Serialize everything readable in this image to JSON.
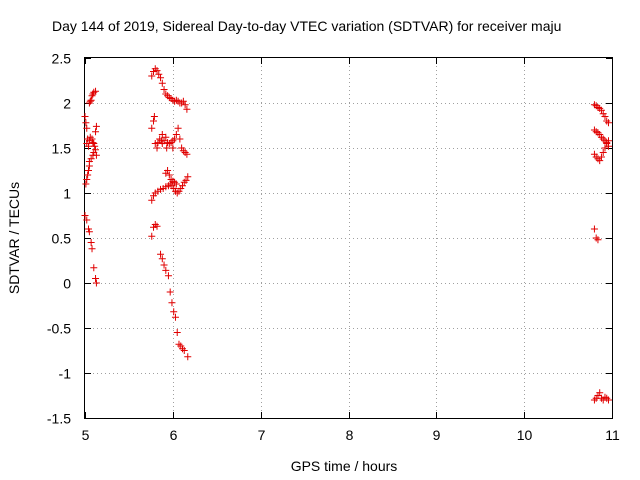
{
  "chart_data": {
    "type": "scatter",
    "title": "Day 144 of 2019, Sidereal Day-to-day VTEC variation (SDTVAR) for receiver maju",
    "xlabel": "GPS time / hours",
    "ylabel": "SDTVAR / TECUs",
    "xlim": [
      5,
      11
    ],
    "ylim": [
      -1.5,
      2.5
    ],
    "xticks": [
      5,
      6,
      7,
      8,
      9,
      10,
      11
    ],
    "xtick_labels": [
      "5",
      "6",
      "7",
      "8",
      "9",
      "10",
      "11"
    ],
    "yticks": [
      -1.5,
      -1,
      -0.5,
      0,
      0.5,
      1,
      1.5,
      2,
      2.5
    ],
    "ytick_labels": [
      "-1.5",
      "-1",
      "-0.5",
      "0",
      "0.5",
      "1",
      "1.5",
      "2",
      "2.5"
    ],
    "grid": true,
    "marker": "+",
    "color": "#e00000",
    "series": [
      {
        "name": "SDTVAR",
        "points": [
          [
            5.0,
            1.85
          ],
          [
            5.01,
            1.78
          ],
          [
            5.02,
            1.72
          ],
          [
            5.03,
            1.6
          ],
          [
            5.02,
            1.55
          ],
          [
            5.04,
            1.52
          ],
          [
            5.05,
            2.0
          ],
          [
            5.06,
            2.02
          ],
          [
            5.07,
            2.03
          ],
          [
            5.08,
            2.08
          ],
          [
            5.09,
            2.1
          ],
          [
            5.1,
            2.12
          ],
          [
            5.12,
            2.13
          ],
          [
            5.05,
            1.58
          ],
          [
            5.06,
            1.62
          ],
          [
            5.08,
            1.6
          ],
          [
            5.09,
            1.56
          ],
          [
            5.1,
            1.55
          ],
          [
            5.11,
            1.52
          ],
          [
            5.12,
            1.48
          ],
          [
            5.13,
            1.42
          ],
          [
            5.12,
            1.68
          ],
          [
            5.13,
            1.74
          ],
          [
            5.05,
            1.35
          ],
          [
            5.07,
            1.38
          ],
          [
            5.09,
            1.42
          ],
          [
            5.1,
            1.45
          ],
          [
            5.01,
            1.1
          ],
          [
            5.02,
            1.15
          ],
          [
            5.03,
            1.2
          ],
          [
            5.04,
            1.25
          ],
          [
            5.05,
            1.3
          ],
          [
            5.0,
            0.75
          ],
          [
            5.02,
            0.7
          ],
          [
            5.04,
            0.6
          ],
          [
            5.05,
            0.57
          ],
          [
            5.07,
            0.45
          ],
          [
            5.08,
            0.38
          ],
          [
            5.1,
            0.17
          ],
          [
            5.12,
            0.05
          ],
          [
            5.13,
            0.0
          ],
          [
            5.76,
            0.52
          ],
          [
            5.78,
            0.62
          ],
          [
            5.8,
            0.65
          ],
          [
            5.82,
            0.63
          ],
          [
            5.86,
            0.32
          ],
          [
            5.88,
            0.27
          ],
          [
            5.9,
            0.2
          ],
          [
            5.92,
            0.14
          ],
          [
            5.95,
            0.08
          ],
          [
            5.97,
            -0.1
          ],
          [
            5.99,
            -0.22
          ],
          [
            6.01,
            -0.32
          ],
          [
            6.03,
            -0.38
          ],
          [
            6.05,
            -0.55
          ],
          [
            6.07,
            -0.68
          ],
          [
            6.09,
            -0.7
          ],
          [
            6.11,
            -0.73
          ],
          [
            6.13,
            -0.75
          ],
          [
            6.17,
            -0.82
          ],
          [
            5.76,
            0.92
          ],
          [
            5.78,
            0.97
          ],
          [
            5.8,
            1.0
          ],
          [
            5.83,
            1.02
          ],
          [
            5.86,
            1.04
          ],
          [
            5.89,
            1.05
          ],
          [
            5.92,
            1.07
          ],
          [
            5.95,
            1.08
          ],
          [
            5.97,
            1.1
          ],
          [
            5.99,
            1.08
          ],
          [
            6.01,
            1.05
          ],
          [
            6.03,
            1.02
          ],
          [
            6.05,
            1.0
          ],
          [
            6.07,
            1.02
          ],
          [
            6.09,
            1.05
          ],
          [
            6.11,
            1.08
          ],
          [
            6.13,
            1.12
          ],
          [
            6.15,
            1.14
          ],
          [
            6.17,
            1.18
          ],
          [
            5.92,
            1.22
          ],
          [
            5.94,
            1.25
          ],
          [
            5.96,
            1.2
          ],
          [
            5.98,
            1.15
          ],
          [
            6.0,
            1.13
          ],
          [
            6.02,
            1.12
          ],
          [
            6.04,
            1.1
          ],
          [
            5.76,
            1.72
          ],
          [
            5.78,
            1.8
          ],
          [
            5.79,
            1.85
          ],
          [
            5.8,
            1.55
          ],
          [
            5.82,
            1.5
          ],
          [
            5.83,
            1.56
          ],
          [
            5.85,
            1.6
          ],
          [
            5.87,
            1.58
          ],
          [
            5.88,
            1.55
          ],
          [
            5.9,
            1.58
          ],
          [
            5.92,
            1.62
          ],
          [
            5.94,
            1.56
          ],
          [
            5.96,
            1.55
          ],
          [
            5.98,
            1.56
          ],
          [
            6.0,
            1.58
          ],
          [
            6.02,
            1.6
          ],
          [
            6.04,
            1.65
          ],
          [
            6.06,
            1.72
          ],
          [
            6.08,
            1.6
          ],
          [
            6.1,
            1.5
          ],
          [
            6.12,
            1.47
          ],
          [
            6.14,
            1.45
          ],
          [
            6.16,
            1.43
          ],
          [
            5.88,
            1.65
          ],
          [
            5.93,
            1.5
          ],
          [
            6.0,
            1.5
          ],
          [
            5.76,
            2.3
          ],
          [
            5.78,
            2.35
          ],
          [
            5.8,
            2.38
          ],
          [
            5.82,
            2.36
          ],
          [
            5.84,
            2.32
          ],
          [
            5.86,
            2.28
          ],
          [
            5.88,
            2.22
          ],
          [
            5.9,
            2.15
          ],
          [
            5.92,
            2.1
          ],
          [
            5.94,
            2.08
          ],
          [
            5.96,
            2.06
          ],
          [
            5.98,
            2.05
          ],
          [
            6.0,
            2.03
          ],
          [
            6.02,
            2.02
          ],
          [
            6.04,
            2.03
          ],
          [
            6.06,
            2.02
          ],
          [
            6.08,
            2.0
          ],
          [
            6.1,
            2.0
          ],
          [
            6.12,
            2.02
          ],
          [
            6.14,
            1.98
          ],
          [
            6.16,
            1.93
          ],
          [
            10.8,
            1.98
          ],
          [
            10.82,
            1.97
          ],
          [
            10.84,
            1.95
          ],
          [
            10.86,
            1.94
          ],
          [
            10.88,
            1.92
          ],
          [
            10.9,
            1.88
          ],
          [
            10.92,
            1.85
          ],
          [
            10.94,
            1.8
          ],
          [
            10.96,
            1.78
          ],
          [
            10.8,
            1.7
          ],
          [
            10.82,
            1.68
          ],
          [
            10.84,
            1.67
          ],
          [
            10.86,
            1.65
          ],
          [
            10.88,
            1.62
          ],
          [
            10.9,
            1.6
          ],
          [
            10.92,
            1.58
          ],
          [
            10.94,
            1.56
          ],
          [
            10.96,
            1.52
          ],
          [
            10.8,
            1.43
          ],
          [
            10.82,
            1.4
          ],
          [
            10.84,
            1.38
          ],
          [
            10.86,
            1.36
          ],
          [
            10.88,
            1.4
          ],
          [
            10.9,
            1.45
          ],
          [
            10.92,
            1.5
          ],
          [
            10.94,
            1.55
          ],
          [
            10.96,
            1.58
          ],
          [
            10.8,
            0.6
          ],
          [
            10.82,
            0.5
          ],
          [
            10.84,
            0.48
          ],
          [
            10.8,
            -1.3
          ],
          [
            10.82,
            -1.28
          ],
          [
            10.84,
            -1.25
          ],
          [
            10.86,
            -1.22
          ],
          [
            10.88,
            -1.28
          ],
          [
            10.9,
            -1.3
          ],
          [
            10.92,
            -1.27
          ],
          [
            10.94,
            -1.28
          ],
          [
            10.96,
            -1.3
          ]
        ]
      }
    ]
  }
}
